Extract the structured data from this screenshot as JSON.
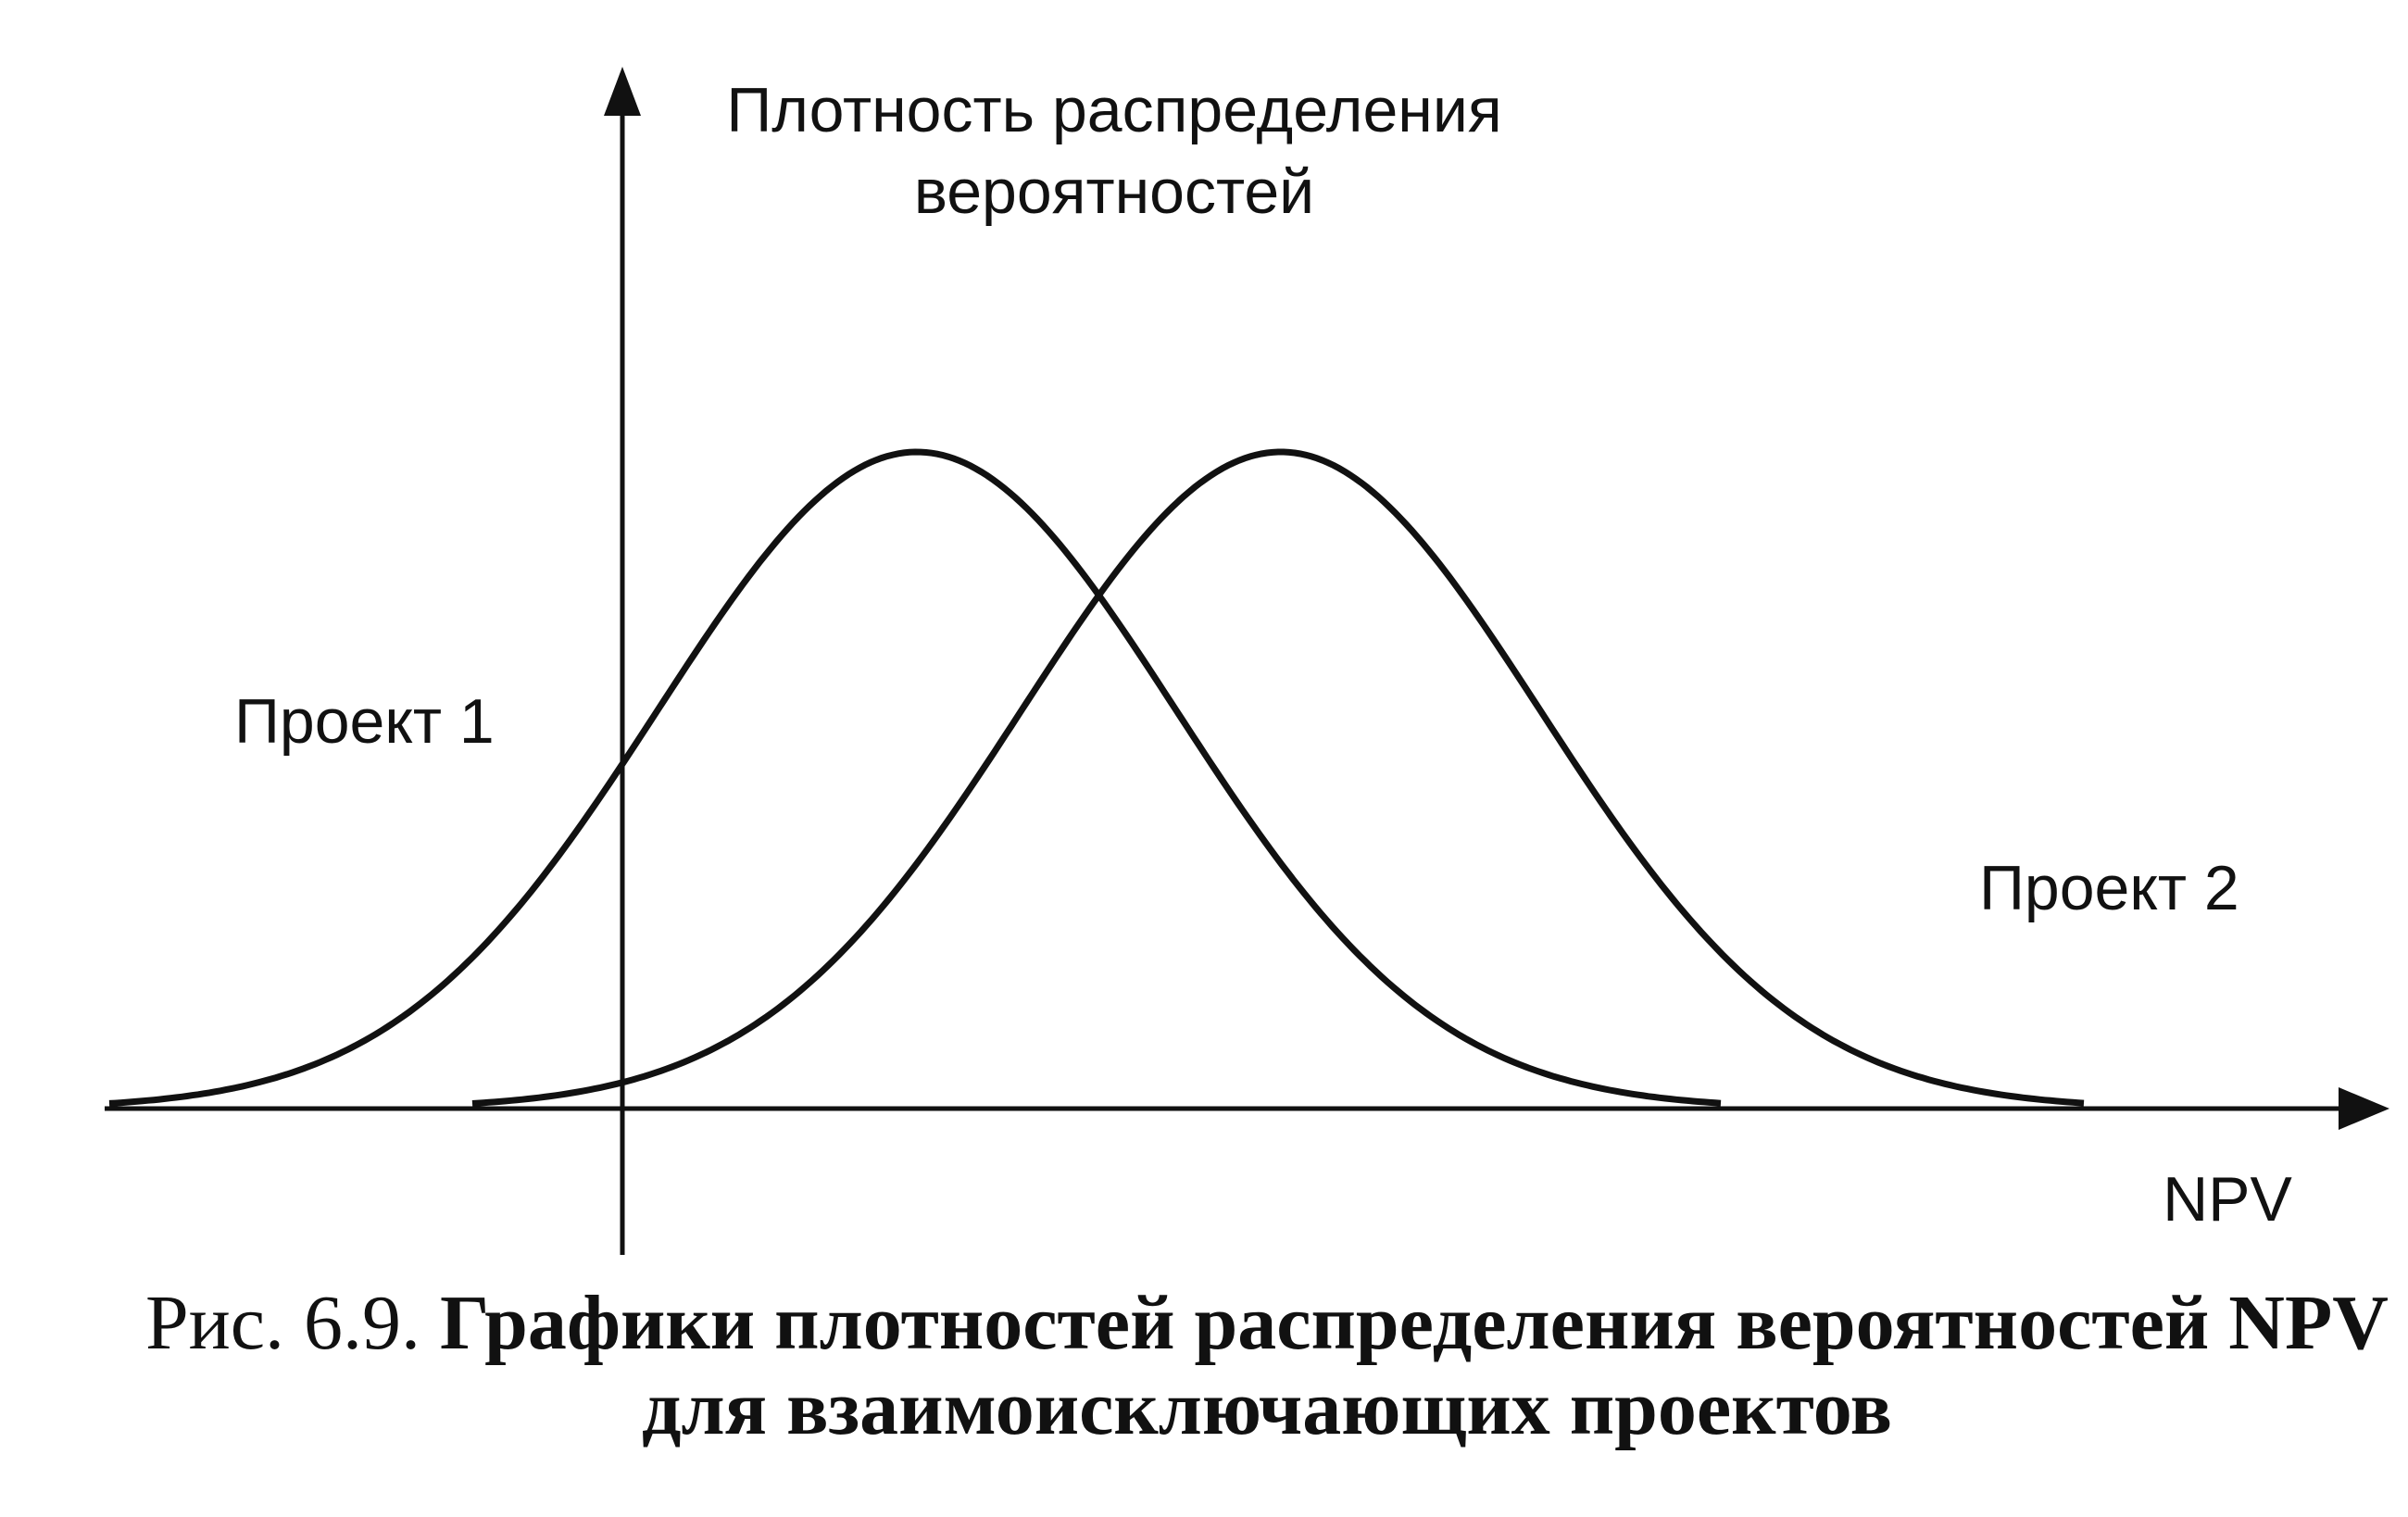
{
  "axes": {
    "y_label_line1": "Плотность распределения",
    "y_label_line2": "вероятностей",
    "x_label": "NPV"
  },
  "curves": {
    "project1": "Проект 1",
    "project2": "Проект 2"
  },
  "caption": {
    "number": "Рис. 6.9.",
    "line1": "Графики плотностей распределения вероятностей NPV",
    "line2": "для взаимоисключающих проектов"
  }
}
